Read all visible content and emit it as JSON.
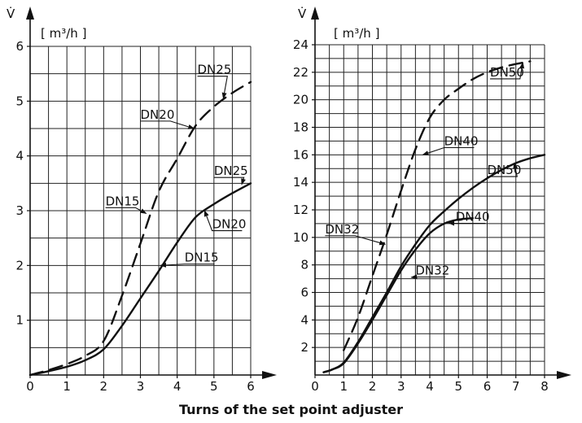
{
  "chart_data": [
    {
      "type": "line",
      "y_symbol": "V̇",
      "y_unit": "[ m³/h ]",
      "xlim": [
        0,
        6
      ],
      "ylim": [
        0,
        6
      ],
      "x_ticks": [
        0,
        1,
        2,
        3,
        4,
        5,
        6
      ],
      "y_ticks": [
        1,
        2,
        3,
        4,
        5,
        6
      ],
      "grid": true,
      "series": [
        {
          "name": "DN15",
          "style": "solid",
          "x": [
            0,
            0.5,
            1.0,
            1.5,
            2.0,
            2.5,
            3.0,
            3.5,
            4.0,
            4.5,
            5.0,
            5.5,
            6.0
          ],
          "y": [
            0,
            0.07,
            0.15,
            0.27,
            0.47,
            0.9,
            1.4,
            1.9,
            2.42,
            2.88,
            3.12,
            3.32,
            3.5
          ]
        },
        {
          "name": "DN15",
          "style": "dashed",
          "x": [
            0,
            0.5,
            1.0,
            1.5,
            2.0,
            2.5,
            3.0,
            3.5,
            4.0,
            4.5,
            5.0,
            5.5,
            6.0
          ],
          "y": [
            0,
            0.09,
            0.2,
            0.35,
            0.62,
            1.45,
            2.4,
            3.35,
            3.95,
            4.55,
            4.9,
            5.15,
            5.35
          ]
        }
      ],
      "annotations": [
        {
          "text": "DN25",
          "x": 4.55,
          "y": 5.5,
          "points_to_x": 5.3,
          "points_to_y": 5.05
        },
        {
          "text": "DN20",
          "x": 3.0,
          "y": 4.68,
          "points_to_x": 4.5,
          "points_to_y": 4.5
        },
        {
          "text": "DN15",
          "x": 2.05,
          "y": 3.1,
          "points_to_x": 3.2,
          "points_to_y": 2.95
        },
        {
          "text": "DN25",
          "x": 5.0,
          "y": 3.65,
          "points_to_x": 5.8,
          "points_to_y": 3.48
        },
        {
          "text": "DN20",
          "x": 4.95,
          "y": 2.68,
          "points_to_x": 4.7,
          "points_to_y": 3.0
        },
        {
          "text": "DN15",
          "x": 4.2,
          "y": 2.07,
          "points_to_x": 3.5,
          "points_to_y": 2.0
        }
      ]
    },
    {
      "type": "line",
      "y_symbol": "V̇",
      "y_unit": "[ m³/h ]",
      "xlim": [
        0,
        8
      ],
      "ylim": [
        0,
        24
      ],
      "x_ticks": [
        0,
        1,
        2,
        3,
        4,
        5,
        6,
        7,
        8
      ],
      "y_ticks": [
        2,
        4,
        6,
        8,
        10,
        12,
        14,
        16,
        18,
        20,
        22,
        24
      ],
      "grid": true,
      "series": [
        {
          "name": "DN50",
          "style": "dashed",
          "x": [
            1.0,
            1.5,
            2.0,
            2.5,
            3.0,
            3.5,
            4.0,
            4.5,
            5.0,
            5.5,
            6.0,
            6.5,
            7.0,
            7.5
          ],
          "y": [
            1.8,
            4.2,
            7.2,
            10.2,
            13.4,
            16.4,
            18.7,
            20.0,
            20.8,
            21.5,
            22.0,
            22.35,
            22.6,
            22.8
          ]
        },
        {
          "name": "DN50",
          "style": "solid",
          "x": [
            0.3,
            0.6,
            1.0,
            1.5,
            2.0,
            2.5,
            3.0,
            3.5,
            4.0,
            4.5,
            5.0,
            5.5,
            6.0,
            6.5,
            7.0,
            7.5,
            8.0
          ],
          "y": [
            0.2,
            0.4,
            0.9,
            2.4,
            4.2,
            6.0,
            7.9,
            9.5,
            10.9,
            11.9,
            12.8,
            13.6,
            14.3,
            14.9,
            15.4,
            15.75,
            16.0
          ]
        },
        {
          "name": "DN40",
          "style": "solid",
          "x": [
            0.3,
            0.6,
            1.0,
            1.5,
            2.0,
            2.5,
            3.0,
            3.5,
            4.0,
            4.5,
            5.0,
            5.5
          ],
          "y": [
            0.2,
            0.4,
            0.85,
            2.3,
            4.0,
            5.8,
            7.6,
            9.1,
            10.3,
            11.0,
            11.3,
            11.4
          ]
        }
      ],
      "annotations": [
        {
          "text": "DN50",
          "x": 6.1,
          "y": 21.7,
          "points_to_x": 7.3,
          "points_to_y": 22.7
        },
        {
          "text": "DN40",
          "x": 4.5,
          "y": 16.7,
          "points_to_x": 3.7,
          "points_to_y": 16.0
        },
        {
          "text": "DN50",
          "x": 6.0,
          "y": 14.6,
          "points_to_x": 7.0,
          "points_to_y": 15.4
        },
        {
          "text": "DN40",
          "x": 4.9,
          "y": 11.2,
          "points_to_x": 4.6,
          "points_to_y": 11.05
        },
        {
          "text": "DN32",
          "x": 0.35,
          "y": 10.3,
          "points_to_x": 2.5,
          "points_to_y": 9.5
        },
        {
          "text": "DN32",
          "x": 3.5,
          "y": 7.3,
          "points_to_x": 3.3,
          "points_to_y": 7.1
        }
      ]
    }
  ],
  "x_axis_title": "Turns of the set point adjuster"
}
